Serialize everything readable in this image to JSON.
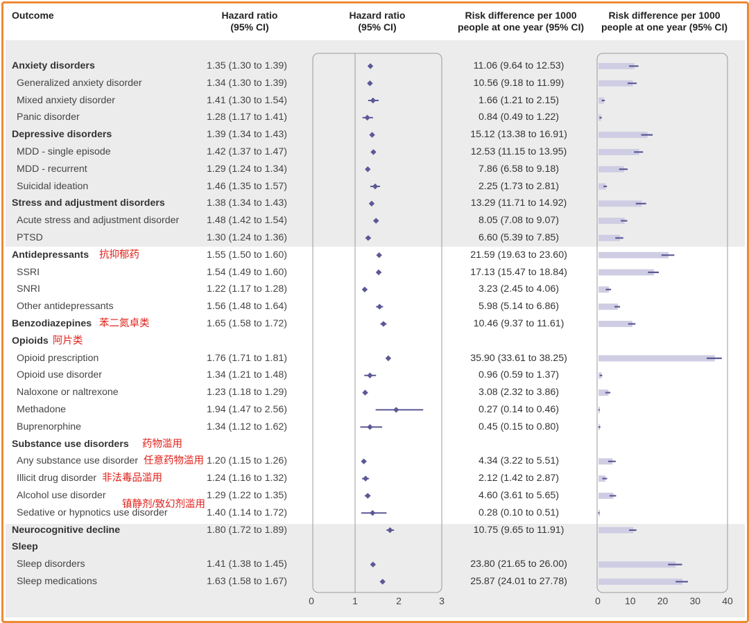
{
  "headers": {
    "outcome": "Outcome",
    "hr_col": [
      "Hazard ratio",
      "(95% CI)"
    ],
    "hr_plot": [
      "Hazard ratio",
      "(95% CI)"
    ],
    "rd_col": [
      "Risk difference per 1000",
      "people at one year (95% CI)"
    ],
    "rd_plot": [
      "Risk difference per 1000",
      "people at one year (95% CI)"
    ]
  },
  "colors": {
    "frame": "#ee8a33",
    "marker": "#5b5896",
    "bar": "#cfcde3",
    "note": "#e0201a",
    "band": "#ececec"
  },
  "rows": [
    {
      "label": "Anxiety disorders",
      "bold": true,
      "hr": 1.35,
      "hr_lo": 1.3,
      "hr_hi": 1.39,
      "hr_text": "1.35 (1.30 to 1.39)",
      "rd": 11.06,
      "rd_lo": 9.64,
      "rd_hi": 12.53,
      "rd_text": "11.06 (9.64 to 12.53)"
    },
    {
      "label": "Generalized anxiety disorder",
      "bold": false,
      "hr": 1.34,
      "hr_lo": 1.3,
      "hr_hi": 1.39,
      "hr_text": "1.34 (1.30 to 1.39)",
      "rd": 10.56,
      "rd_lo": 9.18,
      "rd_hi": 11.99,
      "rd_text": "10.56 (9.18 to 11.99)"
    },
    {
      "label": "Mixed anxiety disorder",
      "bold": false,
      "hr": 1.41,
      "hr_lo": 1.3,
      "hr_hi": 1.54,
      "hr_text": "1.41 (1.30 to 1.54)",
      "rd": 1.66,
      "rd_lo": 1.21,
      "rd_hi": 2.15,
      "rd_text": "1.66 (1.21 to 2.15)"
    },
    {
      "label": "Panic disorder",
      "bold": false,
      "hr": 1.28,
      "hr_lo": 1.17,
      "hr_hi": 1.41,
      "hr_text": "1.28 (1.17 to 1.41)",
      "rd": 0.84,
      "rd_lo": 0.49,
      "rd_hi": 1.22,
      "rd_text": "0.84 (0.49 to 1.22)"
    },
    {
      "label": "Depressive disorders",
      "bold": true,
      "hr": 1.39,
      "hr_lo": 1.34,
      "hr_hi": 1.43,
      "hr_text": "1.39 (1.34 to 1.43)",
      "rd": 15.12,
      "rd_lo": 13.38,
      "rd_hi": 16.91,
      "rd_text": "15.12 (13.38 to 16.91)"
    },
    {
      "label": "MDD - single episode",
      "bold": false,
      "hr": 1.42,
      "hr_lo": 1.37,
      "hr_hi": 1.47,
      "hr_text": "1.42 (1.37 to 1.47)",
      "rd": 12.53,
      "rd_lo": 11.15,
      "rd_hi": 13.95,
      "rd_text": "12.53 (11.15 to 13.95)"
    },
    {
      "label": "MDD - recurrent",
      "bold": false,
      "hr": 1.29,
      "hr_lo": 1.24,
      "hr_hi": 1.34,
      "hr_text": "1.29 (1.24 to 1.34)",
      "rd": 7.86,
      "rd_lo": 6.58,
      "rd_hi": 9.18,
      "rd_text": "7.86 (6.58 to 9.18)"
    },
    {
      "label": "Suicidal ideation",
      "bold": false,
      "hr": 1.46,
      "hr_lo": 1.35,
      "hr_hi": 1.57,
      "hr_text": "1.46 (1.35 to 1.57)",
      "rd": 2.25,
      "rd_lo": 1.73,
      "rd_hi": 2.81,
      "rd_text": "2.25 (1.73 to 2.81)"
    },
    {
      "label": "Stress and adjustment disorders",
      "bold": true,
      "hr": 1.38,
      "hr_lo": 1.34,
      "hr_hi": 1.43,
      "hr_text": "1.38 (1.34 to 1.43)",
      "rd": 13.29,
      "rd_lo": 11.71,
      "rd_hi": 14.92,
      "rd_text": "13.29 (11.71 to 14.92)"
    },
    {
      "label": "Acute stress and adjustment disorder",
      "bold": false,
      "hr": 1.48,
      "hr_lo": 1.42,
      "hr_hi": 1.54,
      "hr_text": "1.48 (1.42 to 1.54)",
      "rd": 8.05,
      "rd_lo": 7.08,
      "rd_hi": 9.07,
      "rd_text": "8.05 (7.08 to 9.07)"
    },
    {
      "label": "PTSD",
      "bold": false,
      "hr": 1.3,
      "hr_lo": 1.24,
      "hr_hi": 1.36,
      "hr_text": "1.30 (1.24 to 1.36)",
      "rd": 6.6,
      "rd_lo": 5.39,
      "rd_hi": 7.85,
      "rd_text": "6.60 (5.39 to 7.85)"
    },
    {
      "label": "Antidepressants",
      "bold": true,
      "note": "抗抑郁药",
      "hr": 1.55,
      "hr_lo": 1.5,
      "hr_hi": 1.6,
      "hr_text": "1.55 (1.50 to 1.60)",
      "rd": 21.59,
      "rd_lo": 19.63,
      "rd_hi": 23.6,
      "rd_text": "21.59 (19.63 to 23.60)"
    },
    {
      "label": "SSRI",
      "bold": false,
      "hr": 1.54,
      "hr_lo": 1.49,
      "hr_hi": 1.6,
      "hr_text": "1.54 (1.49 to 1.60)",
      "rd": 17.13,
      "rd_lo": 15.47,
      "rd_hi": 18.84,
      "rd_text": "17.13 (15.47 to 18.84)"
    },
    {
      "label": "SNRI",
      "bold": false,
      "hr": 1.22,
      "hr_lo": 1.17,
      "hr_hi": 1.28,
      "hr_text": "1.22 (1.17 to 1.28)",
      "rd": 3.23,
      "rd_lo": 2.45,
      "rd_hi": 4.06,
      "rd_text": "3.23 (2.45 to 4.06)"
    },
    {
      "label": "Other antidepressants",
      "bold": false,
      "hr": 1.56,
      "hr_lo": 1.48,
      "hr_hi": 1.64,
      "hr_text": "1.56 (1.48 to 1.64)",
      "rd": 5.98,
      "rd_lo": 5.14,
      "rd_hi": 6.86,
      "rd_text": "5.98 (5.14 to 6.86)"
    },
    {
      "label": "Benzodiazepines",
      "bold": true,
      "note": "苯二氮卓类",
      "hr": 1.65,
      "hr_lo": 1.58,
      "hr_hi": 1.72,
      "hr_text": "1.65 (1.58 to 1.72)",
      "rd": 10.46,
      "rd_lo": 9.37,
      "rd_hi": 11.61,
      "rd_text": "10.46 (9.37 to 11.61)"
    },
    {
      "label": "Opioids",
      "bold": true,
      "note": "阿片类",
      "heading": true
    },
    {
      "label": "Opioid prescription",
      "bold": false,
      "hr": 1.76,
      "hr_lo": 1.71,
      "hr_hi": 1.81,
      "hr_text": "1.76 (1.71 to 1.81)",
      "rd": 35.9,
      "rd_lo": 33.61,
      "rd_hi": 38.25,
      "rd_text": "35.90 (33.61 to 38.25)"
    },
    {
      "label": "Opioid use disorder",
      "bold": false,
      "hr": 1.34,
      "hr_lo": 1.21,
      "hr_hi": 1.48,
      "hr_text": "1.34 (1.21 to 1.48)",
      "rd": 0.96,
      "rd_lo": 0.59,
      "rd_hi": 1.37,
      "rd_text": "0.96 (0.59 to 1.37)"
    },
    {
      "label": "Naloxone or naltrexone",
      "bold": false,
      "hr": 1.23,
      "hr_lo": 1.18,
      "hr_hi": 1.29,
      "hr_text": "1.23 (1.18 to 1.29)",
      "rd": 3.08,
      "rd_lo": 2.32,
      "rd_hi": 3.86,
      "rd_text": "3.08 (2.32 to 3.86)"
    },
    {
      "label": "Methadone",
      "bold": false,
      "hr": 1.94,
      "hr_lo": 1.47,
      "hr_hi": 2.56,
      "hr_text": "1.94 (1.47 to 2.56)",
      "rd": 0.27,
      "rd_lo": 0.14,
      "rd_hi": 0.46,
      "rd_text": "0.27 (0.14 to 0.46)"
    },
    {
      "label": "Buprenorphine",
      "bold": false,
      "hr": 1.34,
      "hr_lo": 1.12,
      "hr_hi": 1.62,
      "hr_text": "1.34 (1.12 to 1.62)",
      "rd": 0.45,
      "rd_lo": 0.15,
      "rd_hi": 0.8,
      "rd_text": "0.45 (0.15 to 0.80)"
    },
    {
      "label": "Substance use disorders",
      "bold": true,
      "note": "药物滥用",
      "heading": true
    },
    {
      "label": "Any substance use disorder",
      "bold": false,
      "note": "任意药物滥用",
      "hr": 1.2,
      "hr_lo": 1.15,
      "hr_hi": 1.26,
      "hr_text": "1.20 (1.15 to 1.26)",
      "rd": 4.34,
      "rd_lo": 3.22,
      "rd_hi": 5.51,
      "rd_text": "4.34 (3.22 to 5.51)"
    },
    {
      "label": "Illicit drug disorder",
      "bold": false,
      "note": "非法毒品滥用",
      "hr": 1.24,
      "hr_lo": 1.16,
      "hr_hi": 1.32,
      "hr_text": "1.24 (1.16 to 1.32)",
      "rd": 2.12,
      "rd_lo": 1.42,
      "rd_hi": 2.87,
      "rd_text": "2.12 (1.42 to 2.87)"
    },
    {
      "label": "Alcohol use disorder",
      "bold": false,
      "note": "镇静剂/致幻剂滥用",
      "hr": 1.29,
      "hr_lo": 1.22,
      "hr_hi": 1.35,
      "hr_text": "1.29 (1.22 to 1.35)",
      "rd": 4.6,
      "rd_lo": 3.61,
      "rd_hi": 5.65,
      "rd_text": "4.60 (3.61 to 5.65)"
    },
    {
      "label": "Sedative or hypnotics use disorder",
      "bold": false,
      "hr": 1.4,
      "hr_lo": 1.14,
      "hr_hi": 1.72,
      "hr_text": "1.40 (1.14 to 1.72)",
      "rd": 0.28,
      "rd_lo": 0.1,
      "rd_hi": 0.51,
      "rd_text": "0.28 (0.10 to 0.51)"
    },
    {
      "label": "Neurocognitive decline",
      "bold": true,
      "hr": 1.8,
      "hr_lo": 1.72,
      "hr_hi": 1.89,
      "hr_text": "1.80 (1.72 to 1.89)",
      "rd": 10.75,
      "rd_lo": 9.65,
      "rd_hi": 11.91,
      "rd_text": "10.75 (9.65 to 11.91)"
    },
    {
      "label": "Sleep",
      "bold": true,
      "heading": true
    },
    {
      "label": "Sleep disorders",
      "bold": false,
      "hr": 1.41,
      "hr_lo": 1.38,
      "hr_hi": 1.45,
      "hr_text": "1.41 (1.38 to 1.45)",
      "rd": 23.8,
      "rd_lo": 21.65,
      "rd_hi": 26.0,
      "rd_text": "23.80 (21.65 to 26.00)"
    },
    {
      "label": "Sleep medications",
      "bold": false,
      "hr": 1.63,
      "hr_lo": 1.58,
      "hr_hi": 1.67,
      "hr_text": "1.63 (1.58 to 1.67)",
      "rd": 25.87,
      "rd_lo": 24.01,
      "rd_hi": 27.78,
      "rd_text": "25.87 (24.01 to 27.78)"
    }
  ],
  "chart_data": [
    {
      "type": "scatter",
      "title": "Hazard ratio (95% CI)",
      "xlim": [
        0,
        3
      ],
      "xticks": [
        "0",
        "1",
        "2",
        "3"
      ],
      "reference_line": 1,
      "categories": [
        "Anxiety disorders",
        "Generalized anxiety disorder",
        "Mixed anxiety disorder",
        "Panic disorder",
        "Depressive disorders",
        "MDD - single episode",
        "MDD - recurrent",
        "Suicidal ideation",
        "Stress and adjustment disorders",
        "Acute stress and adjustment disorder",
        "PTSD",
        "Antidepressants",
        "SSRI",
        "SNRI",
        "Other antidepressants",
        "Benzodiazepines",
        "Opioids",
        "Opioid prescription",
        "Opioid use disorder",
        "Naloxone or naltrexone",
        "Methadone",
        "Buprenorphine",
        "Substance use disorders",
        "Any substance use disorder",
        "Illicit drug disorder",
        "Alcohol use disorder",
        "Sedative or hypnotics use disorder",
        "Neurocognitive decline",
        "Sleep",
        "Sleep disorders",
        "Sleep medications"
      ]
    },
    {
      "type": "bar",
      "title": "Risk difference per 1000 people at one year (95% CI)",
      "xlim": [
        0,
        40
      ],
      "xticks": [
        "0",
        "10",
        "20",
        "30",
        "40"
      ]
    }
  ]
}
